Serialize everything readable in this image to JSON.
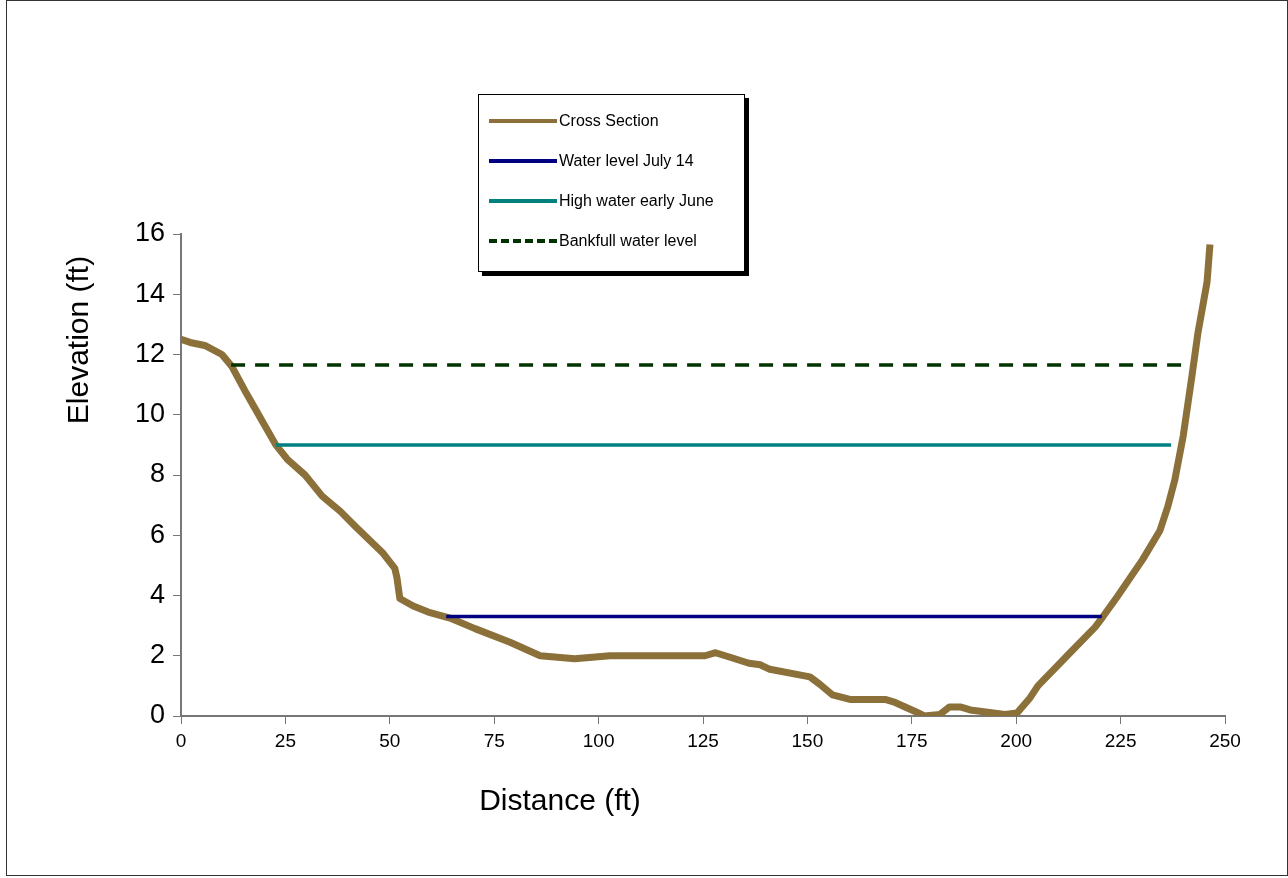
{
  "chart_data": {
    "type": "line",
    "xlabel": "Distance (ft)",
    "ylabel": "Elevation (ft)",
    "xlim": [
      0,
      250
    ],
    "xticks": [
      0,
      25,
      50,
      75,
      100,
      125,
      150,
      175,
      200,
      225,
      250
    ],
    "ylim": [
      0,
      16
    ],
    "yticks": [
      0,
      2,
      4,
      6,
      8,
      10,
      12,
      14,
      16
    ],
    "grid": false,
    "legend": "top",
    "marker": "none",
    "series": [
      {
        "name": "Cross Section",
        "color": "#8c703a",
        "line_style": "solid",
        "x": [
          0,
          2.2,
          5.7,
          9.8,
          12.2,
          15.3,
          19.4,
          22.7,
          25.6,
          29.7,
          33.8,
          38.1,
          41.7,
          48.4,
          51.2,
          51.7,
          52.4,
          55.6,
          59.2,
          64.4,
          70.4,
          78.8,
          86,
          94.3,
          102.7,
          112,
          125.5,
          128,
          131.5,
          136,
          138.7,
          141,
          150.6,
          153,
          156,
          160.2,
          168.6,
          171,
          175.8,
          178,
          181.7,
          184,
          186.6,
          189,
          197.3,
          200.2,
          203.3,
          205.2,
          212.9,
          218.9,
          220.8,
          224.4,
          230.3,
          234.4,
          236.3,
          238,
          240,
          242.1,
          243.5,
          245.7,
          246.4
        ],
        "values": [
          12.5,
          12.4,
          12.3,
          12,
          11.6,
          10.8,
          9.8,
          9,
          8.5,
          8,
          7.3,
          6.8,
          6.3,
          5.4,
          4.9,
          4.6,
          3.9,
          3.65,
          3.45,
          3.25,
          2.9,
          2.45,
          2,
          1.9,
          2,
          2,
          2,
          2.1,
          1.95,
          1.75,
          1.7,
          1.55,
          1.3,
          1.05,
          0.7,
          0.55,
          0.55,
          0.45,
          0.15,
          0,
          0.05,
          0.3,
          0.3,
          0.2,
          0.05,
          0.1,
          0.6,
          1,
          2.1,
          2.95,
          3.3,
          4,
          5.2,
          6.15,
          6.95,
          7.85,
          9.3,
          11.3,
          12.7,
          14.4,
          15.65
        ]
      },
      {
        "name": "Water level July 14",
        "color": "#000080",
        "line_style": "solid",
        "x": [
          63.5,
          220.5
        ],
        "values": [
          3.3,
          3.3
        ]
      },
      {
        "name": "High water early June",
        "color": "#008080",
        "line_style": "solid",
        "x": [
          22.7,
          237.1
        ],
        "values": [
          9,
          9
        ]
      },
      {
        "name": "Bankfull water level",
        "color": "#003300",
        "line_style": "dashed",
        "x": [
          12,
          240.2
        ],
        "values": [
          11.65,
          11.65
        ]
      }
    ]
  }
}
